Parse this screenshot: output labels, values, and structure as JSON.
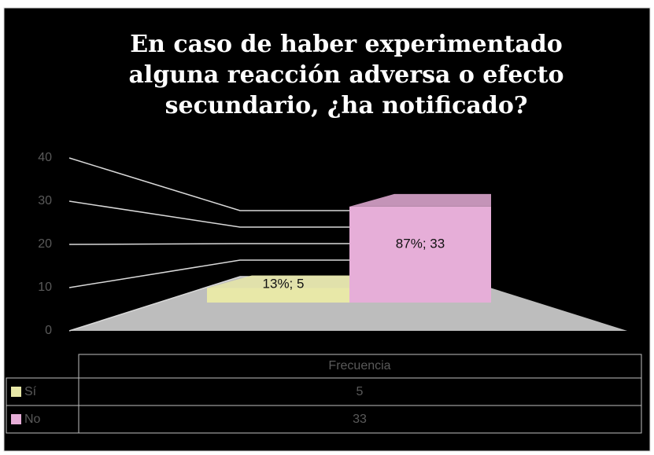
{
  "chart_data": {
    "type": "bar3d",
    "title": "En caso de haber experimentado alguna reacción adversa o efecto secundario, ¿ha notificado?",
    "categories": [
      "Frecuencia"
    ],
    "series": [
      {
        "name": "Sí",
        "color": "#e8e8a8",
        "values": [
          5
        ],
        "value_labels": [
          "13%; 5"
        ]
      },
      {
        "name": "No",
        "color": "#e6aed8",
        "values": [
          33
        ],
        "value_labels": [
          "87%; 33"
        ]
      }
    ],
    "ylim": [
      0,
      40
    ],
    "yticks": [
      0,
      10,
      20,
      30,
      40
    ],
    "grid": true,
    "data_table": true
  }
}
